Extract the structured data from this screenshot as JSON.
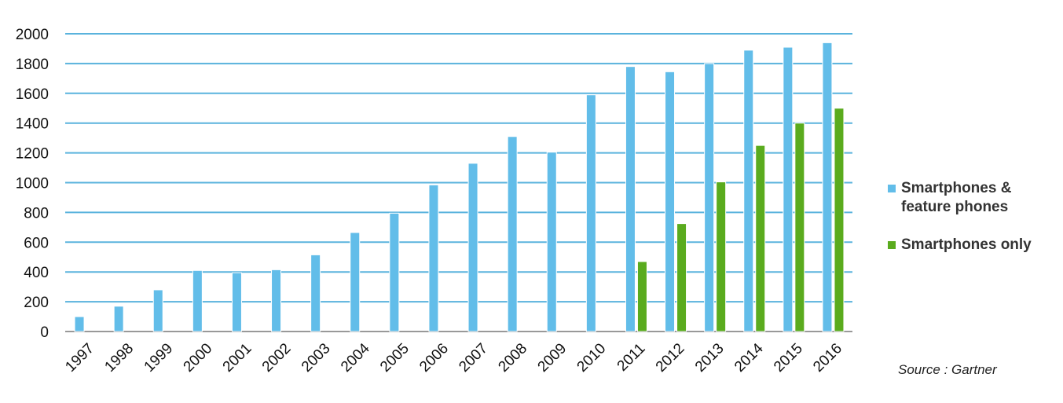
{
  "chart_data": {
    "type": "bar",
    "categories": [
      "1997",
      "1998",
      "1999",
      "2000",
      "2001",
      "2002",
      "2003",
      "2004",
      "2005",
      "2006",
      "2007",
      "2008",
      "2009",
      "2010",
      "2011",
      "2012",
      "2013",
      "2014",
      "2015",
      "2016"
    ],
    "series": [
      {
        "name": "Smartphones & feature phones",
        "color": "#62bde9",
        "values": [
          100,
          170,
          280,
          410,
          395,
          415,
          515,
          665,
          795,
          985,
          1130,
          1310,
          1205,
          1590,
          1780,
          1745,
          1800,
          1890,
          1910,
          1940
        ]
      },
      {
        "name": "Smartphones only",
        "color": "#5aab1e",
        "values": [
          null,
          null,
          null,
          null,
          null,
          null,
          null,
          null,
          null,
          null,
          null,
          null,
          null,
          null,
          470,
          725,
          1005,
          1250,
          1400,
          1500
        ]
      }
    ],
    "ylim": [
      0,
      2000
    ],
    "yticks": [
      0,
      200,
      400,
      600,
      800,
      1000,
      1200,
      1400,
      1600,
      1800,
      2000
    ],
    "grid": true,
    "source": "Source : Gartner"
  }
}
